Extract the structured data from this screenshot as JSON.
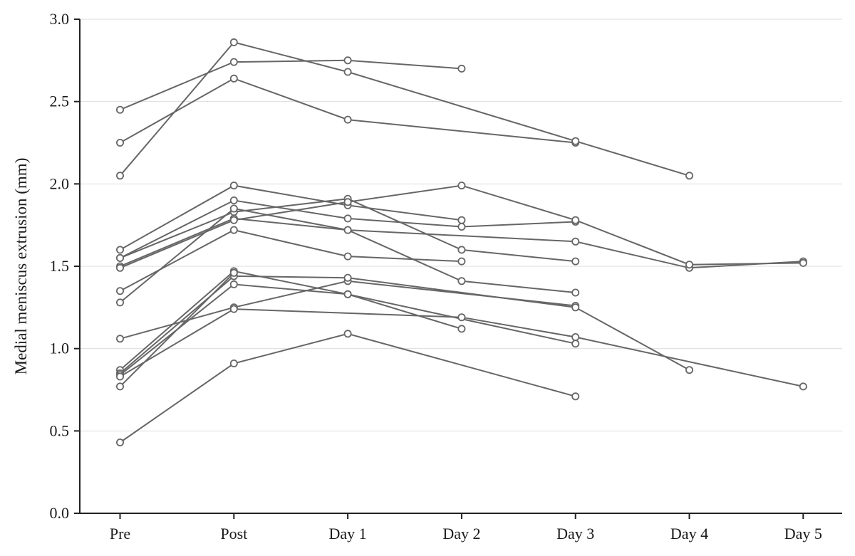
{
  "chart_data": {
    "type": "line",
    "categories": [
      "Pre",
      "Post",
      "Day 1",
      "Day 2",
      "Day 3",
      "Day 4",
      "Day 5"
    ],
    "ylabel": "Medial meniscus extrusion (mm)",
    "xlabel": "",
    "ylim": [
      0,
      3.0
    ],
    "yticks": [
      "0.0",
      "0.5",
      "1.0",
      "1.5",
      "2.0",
      "2.5",
      "3.0"
    ],
    "grid": "horizontal",
    "colors": {
      "line": "#666666",
      "marker_fill": "#ffffff",
      "marker_stroke": "#666666",
      "grid": "#dddddd",
      "axis": "#222222"
    },
    "series": [
      {
        "values": [
          2.45,
          2.74,
          2.75,
          2.7,
          null,
          null,
          null
        ]
      },
      {
        "values": [
          2.25,
          2.64,
          2.39,
          null,
          2.25,
          null,
          null
        ]
      },
      {
        "values": [
          2.05,
          2.86,
          2.68,
          null,
          2.26,
          2.05,
          null
        ]
      },
      {
        "values": [
          1.6,
          1.99,
          1.87,
          1.78,
          null,
          null,
          null
        ]
      },
      {
        "values": [
          1.55,
          1.9,
          1.79,
          1.74,
          1.77,
          null,
          null
        ]
      },
      {
        "values": [
          1.55,
          1.83,
          1.91,
          1.6,
          1.53,
          null,
          null
        ]
      },
      {
        "values": [
          1.5,
          1.79,
          1.72,
          null,
          1.65,
          1.49,
          1.53
        ]
      },
      {
        "values": [
          1.49,
          1.78,
          1.89,
          1.99,
          1.78,
          1.51,
          1.52
        ]
      },
      {
        "values": [
          1.35,
          1.72,
          1.56,
          1.53,
          null,
          null,
          null
        ]
      },
      {
        "values": [
          1.28,
          1.85,
          1.72,
          1.41,
          1.34,
          null,
          null
        ]
      },
      {
        "values": [
          1.06,
          1.25,
          1.41,
          null,
          1.26,
          null,
          null
        ]
      },
      {
        "values": [
          0.87,
          1.47,
          1.33,
          1.12,
          null,
          null,
          null
        ]
      },
      {
        "values": [
          0.85,
          1.44,
          1.43,
          null,
          1.25,
          0.87,
          null
        ]
      },
      {
        "values": [
          0.84,
          1.39,
          1.33,
          null,
          1.03,
          null,
          null
        ]
      },
      {
        "values": [
          0.83,
          1.24,
          null,
          1.19,
          1.07,
          null,
          0.77
        ]
      },
      {
        "values": [
          0.77,
          1.46,
          null,
          null,
          null,
          null,
          null
        ]
      },
      {
        "values": [
          0.43,
          0.91,
          1.09,
          null,
          0.71,
          null,
          null
        ]
      }
    ]
  }
}
